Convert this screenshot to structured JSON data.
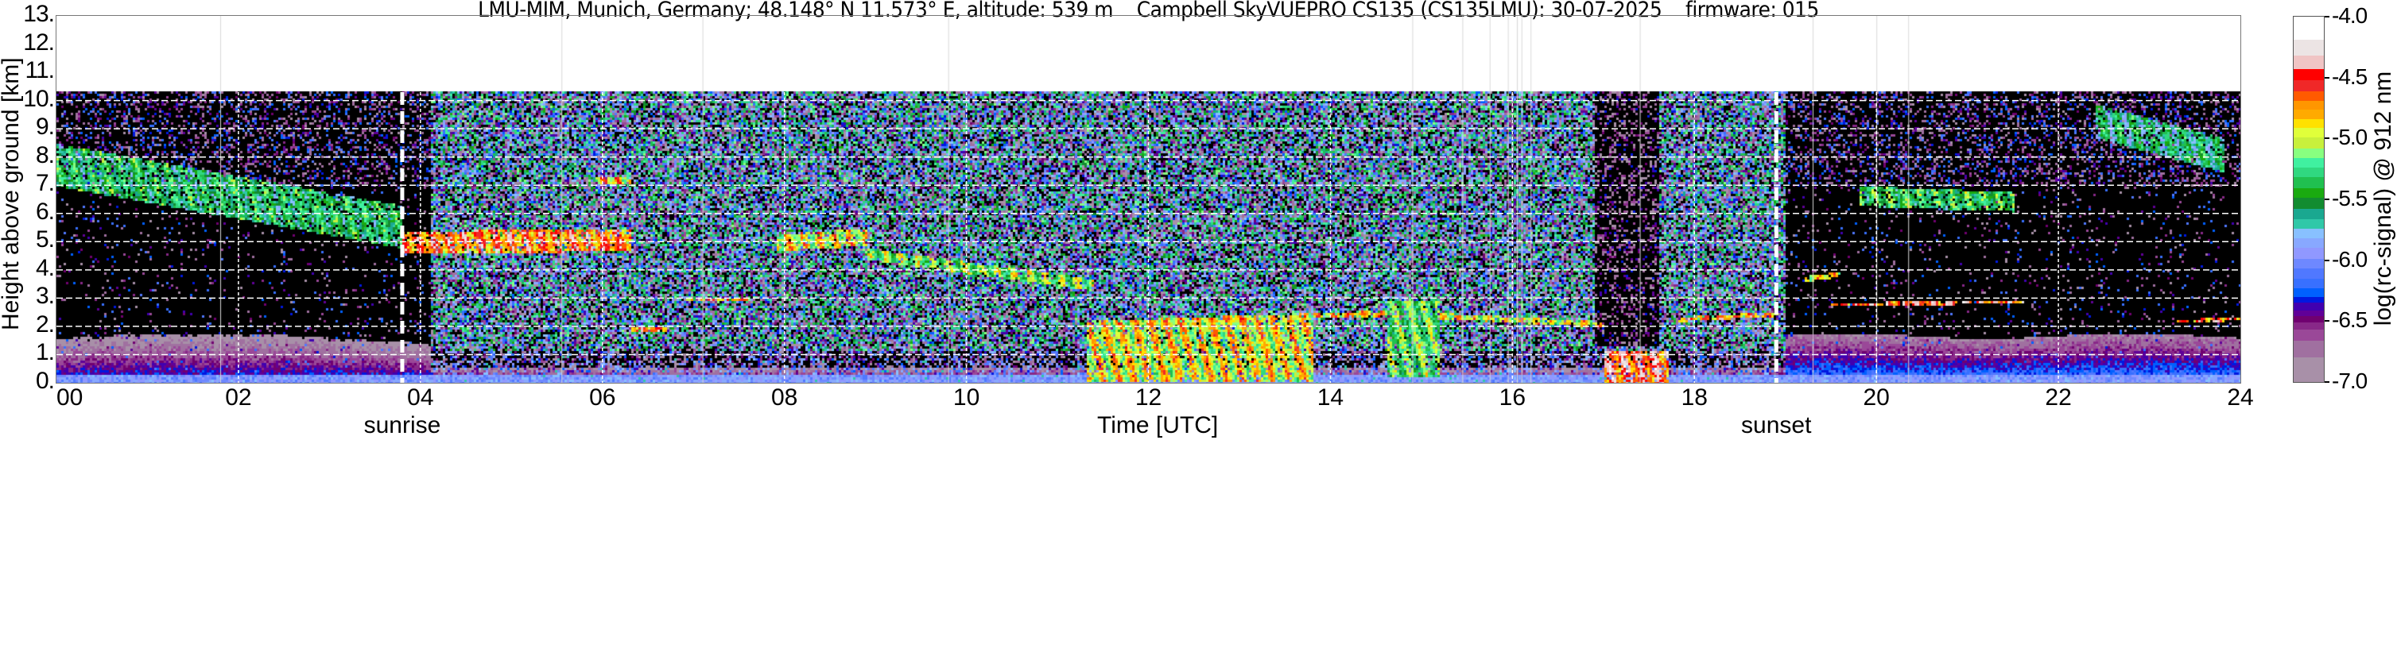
{
  "chart_data": {
    "type": "heatmap",
    "title": "LMU-MIM, Munich, Germany; 48.148° N 11.573° E, altitude: 539 m    Campbell SkyVUEPRO CS135 (CS135LMU): 30-07-2025    firmware: 015",
    "xlabel": "Time [UTC]",
    "ylabel": "Height above ground [km]",
    "xlim": [
      0,
      24
    ],
    "ylim": [
      0,
      13
    ],
    "data_top_km": 10.3,
    "xticks": [
      "00",
      "02",
      "04",
      "06",
      "08",
      "10",
      "12",
      "14",
      "16",
      "18",
      "20",
      "22",
      "24"
    ],
    "xtick_values": [
      0,
      2,
      4,
      6,
      8,
      10,
      12,
      14,
      16,
      18,
      20,
      22,
      24
    ],
    "yticks": [
      "0.",
      "1.",
      "2.",
      "3.",
      "4.",
      "5.",
      "6.",
      "7.",
      "8.",
      "9.",
      "10.",
      "11.",
      "12.",
      "13."
    ],
    "ytick_values": [
      0,
      1,
      2,
      3,
      4,
      5,
      6,
      7,
      8,
      9,
      10,
      11,
      12,
      13
    ],
    "grid": true,
    "annotations": [
      {
        "label": "sunrise",
        "x": 3.8
      },
      {
        "label": "sunset",
        "x": 18.9
      }
    ],
    "data_gaps_hours": [
      1.8,
      5.55,
      7.1,
      9.8,
      14.9,
      15.45,
      15.75,
      15.95,
      16.05,
      16.1,
      16.2,
      17.4,
      19.3,
      20.0,
      20.35
    ],
    "colorbar": {
      "label": "log(rc-signal) @ 912 nm",
      "range": [
        -7.0,
        -4.0
      ],
      "ticks": [
        "-4.0",
        "-4.5",
        "-5.0",
        "-5.5",
        "-6.0",
        "-6.5",
        "-7.0"
      ],
      "tick_values": [
        -4.0,
        -4.5,
        -5.0,
        -5.5,
        -6.0,
        -6.5,
        -7.0
      ],
      "levels": [
        -4.0,
        -4.19,
        -4.32,
        -4.43,
        -4.52,
        -4.61,
        -4.69,
        -4.76,
        -4.84,
        -4.91,
        -4.99,
        -5.08,
        -5.16,
        -5.24,
        -5.32,
        -5.41,
        -5.49,
        -5.58,
        -5.66,
        -5.74,
        -5.82,
        -5.9,
        -5.99,
        -6.07,
        -6.15,
        -6.23,
        -6.3,
        -6.35,
        -6.41,
        -6.46,
        -6.51,
        -6.57,
        -6.66,
        -6.8,
        -7.0
      ],
      "colors": [
        "#ffffff",
        "#ece4e4",
        "#f0c4c4",
        "#ff0000",
        "#f02828",
        "#ff5a00",
        "#ff9600",
        "#ffaa00",
        "#ffe100",
        "#e0ff3a",
        "#c8f03c",
        "#88ff80",
        "#40f0a0",
        "#30d880",
        "#20c050",
        "#1aaa10",
        "#128c30",
        "#1aa890",
        "#30c8a8",
        "#88c0ff",
        "#88a8ff",
        "#9098ff",
        "#6e88ff",
        "#5078ff",
        "#3870ff",
        "#0060ff",
        "#0018e0",
        "#4000b0",
        "#600098",
        "#700070",
        "#882888",
        "#9a4898",
        "#a070a0",
        "#a890a8"
      ],
      "below_range_color": "#000000"
    },
    "features": [
      {
        "t": [
          0.0,
          3.8
        ],
        "base_km": [
          7.0,
          4.8
        ],
        "depth_km": 1.5,
        "value": -5.0
      },
      {
        "t": [
          3.8,
          6.3
        ],
        "base_km": [
          4.6,
          4.7
        ],
        "depth_km": 0.8,
        "value": -4.2
      },
      {
        "t": [
          5.9,
          6.3
        ],
        "base_km": [
          7.1,
          7.1
        ],
        "depth_km": 0.2,
        "value": -4.4
      },
      {
        "t": [
          7.9,
          8.9
        ],
        "base_km": [
          4.7,
          4.9
        ],
        "depth_km": 0.6,
        "value": -4.5
      },
      {
        "t": [
          8.9,
          11.4
        ],
        "base_km": [
          4.4,
          3.3
        ],
        "depth_km": 0.4,
        "value": -4.7
      },
      {
        "t": [
          6.9,
          7.6
        ],
        "base_km": [
          2.9,
          2.9
        ],
        "depth_km": 0.15,
        "value": -4.2
      },
      {
        "t": [
          6.3,
          6.7
        ],
        "base_km": [
          1.85,
          1.85
        ],
        "depth_km": 0.12,
        "value": -4.2
      },
      {
        "t": [
          11.3,
          13.8
        ],
        "base_km": [
          0.1,
          0.1
        ],
        "depth_km": 2.2,
        "value": -4.5
      },
      {
        "t": [
          12.0,
          14.6
        ],
        "base_km": [
          2.1,
          2.4
        ],
        "depth_km": 0.2,
        "value": -4.4
      },
      {
        "t": [
          14.6,
          15.2
        ],
        "base_km": [
          0.2,
          0.2
        ],
        "depth_km": 2.7,
        "value": -4.8
      },
      {
        "t": [
          15.2,
          17.0
        ],
        "base_km": [
          2.3,
          2.0
        ],
        "depth_km": 0.2,
        "value": -4.5
      },
      {
        "t": [
          17.0,
          17.7
        ],
        "base_km": [
          0.0,
          0.0
        ],
        "depth_km": 1.2,
        "value": -4.1
      },
      {
        "t": [
          17.8,
          18.9
        ],
        "base_km": [
          2.2,
          2.4
        ],
        "depth_km": 0.15,
        "value": -4.3
      },
      {
        "t": [
          19.2,
          19.6
        ],
        "base_km": [
          3.6,
          3.8
        ],
        "depth_km": 0.2,
        "value": -4.5
      },
      {
        "t": [
          19.5,
          21.6
        ],
        "base_km": [
          2.75,
          2.85
        ],
        "depth_km": 0.12,
        "value": -4.1
      },
      {
        "t": [
          19.8,
          21.5
        ],
        "base_km": [
          6.3,
          6.1
        ],
        "depth_km": 0.7,
        "value": -4.9
      },
      {
        "t": [
          22.4,
          23.8
        ],
        "base_km": [
          8.7,
          7.5
        ],
        "depth_km": 1.2,
        "value": -5.1
      },
      {
        "t": [
          23.3,
          24.0
        ],
        "base_km": [
          2.15,
          2.25
        ],
        "depth_km": 0.12,
        "value": -4.2
      }
    ]
  }
}
